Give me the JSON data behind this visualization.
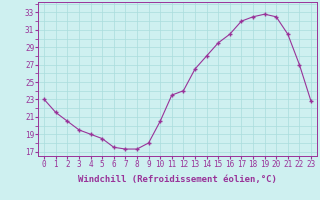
{
  "x": [
    0,
    1,
    2,
    3,
    4,
    5,
    6,
    7,
    8,
    9,
    10,
    11,
    12,
    13,
    14,
    15,
    16,
    17,
    18,
    19,
    20,
    21,
    22,
    23
  ],
  "y": [
    23,
    21.5,
    20.5,
    19.5,
    19,
    18.5,
    17.5,
    17.3,
    17.3,
    18,
    20.5,
    23.5,
    24,
    26.5,
    28,
    29.5,
    30.5,
    32,
    32.5,
    32.8,
    32.5,
    30.5,
    27,
    22.8
  ],
  "line_color": "#993399",
  "marker_color": "#993399",
  "background_color": "#cef0f0",
  "grid_color": "#aadddd",
  "xlabel": "Windchill (Refroidissement éolien,°C)",
  "ylim": [
    16.5,
    34.2
  ],
  "xlim": [
    -0.5,
    23.5
  ],
  "yticks": [
    17,
    19,
    21,
    23,
    25,
    27,
    29,
    31,
    33
  ],
  "xticks": [
    0,
    1,
    2,
    3,
    4,
    5,
    6,
    7,
    8,
    9,
    10,
    11,
    12,
    13,
    14,
    15,
    16,
    17,
    18,
    19,
    20,
    21,
    22,
    23
  ],
  "tick_fontsize": 5.5,
  "label_fontsize": 6.5
}
